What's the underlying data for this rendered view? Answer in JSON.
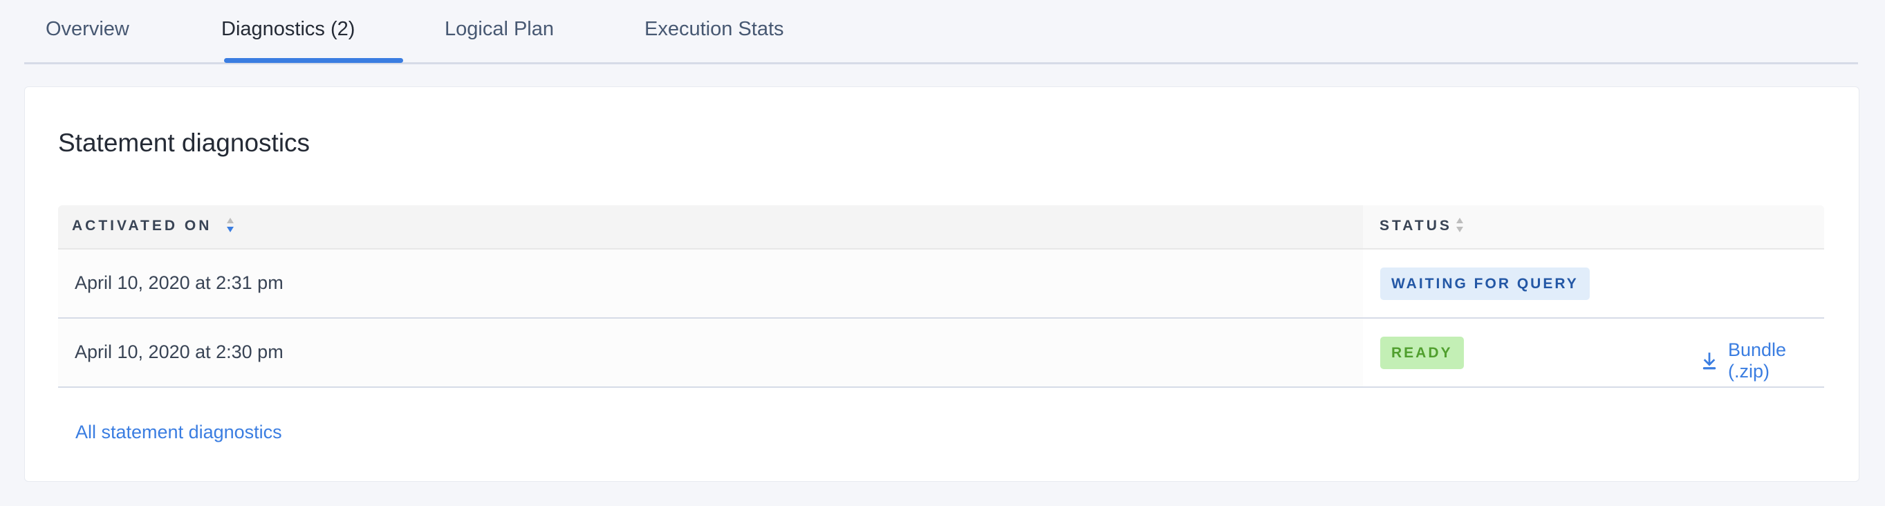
{
  "tabs": [
    {
      "label": "Overview",
      "active": false
    },
    {
      "label": "Diagnostics (2)",
      "active": true
    },
    {
      "label": "Logical Plan",
      "active": false
    },
    {
      "label": "Execution Stats",
      "active": false
    }
  ],
  "card": {
    "title": "Statement diagnostics",
    "columns": [
      {
        "label": "ACTIVATED ON",
        "sort": "descending"
      },
      {
        "label": "STATUS",
        "sort": "none"
      }
    ],
    "rows": [
      {
        "activated_on": "April 10, 2020 at 2:31 pm",
        "status": "WAITING FOR QUERY",
        "status_color": "#2357a5"
      },
      {
        "activated_on": "April 10, 2020 at 2:30 pm",
        "status": "READY",
        "status_color": "#509f2e",
        "action": {
          "label": "Bundle (.zip)",
          "icon": "download-icon"
        }
      }
    ],
    "all_link": "All statement diagnostics"
  },
  "colors": {
    "accent": "#3a7de1"
  }
}
